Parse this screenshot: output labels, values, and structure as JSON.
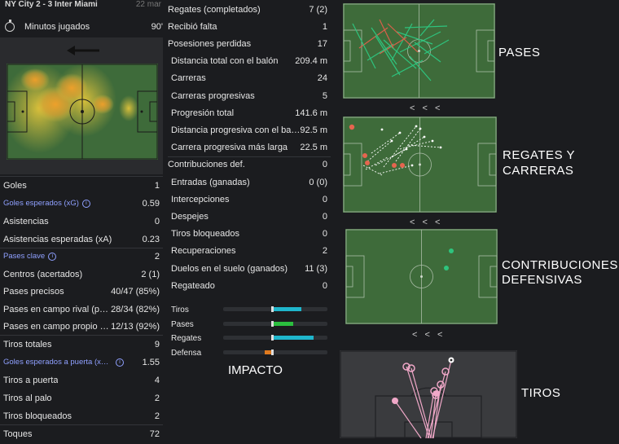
{
  "header": {
    "match": "NY City 2 - 3 Inter Miami",
    "date": "22 mar"
  },
  "minutes": {
    "label": "Minutos jugados",
    "value": "90'"
  },
  "left_stats": [
    {
      "label": "Goles",
      "value": "1",
      "style": "normal"
    },
    {
      "label": "Goles esperados (xG)",
      "value": "0.59",
      "style": "blue"
    },
    {
      "label": "Asistencias",
      "value": "0",
      "style": "normal"
    },
    {
      "label": "Asistencias esperadas (xA)",
      "value": "0.23",
      "style": "normal"
    },
    {
      "label": "Pases clave",
      "value": "2",
      "style": "blue"
    },
    {
      "label": "Centros (acertados)",
      "value": "2 (1)",
      "style": "normal"
    },
    {
      "label": "Pases precisos",
      "value": "40/47 (85%)",
      "style": "normal"
    },
    {
      "label": "Pases en campo rival (precisión)",
      "value": "28/34 (82%)",
      "style": "normal"
    },
    {
      "label": "Pases en campo propio (precisión)",
      "value": "12/13 (92%)",
      "style": "normal"
    },
    {
      "label": "Tiros totales",
      "value": "9",
      "style": "normal"
    },
    {
      "label": "Goles esperados a puerta (xGOT)",
      "value": "1.55",
      "style": "blue"
    },
    {
      "label": "Tiros a puerta",
      "value": "4",
      "style": "normal"
    },
    {
      "label": "Tiros al palo",
      "value": "2",
      "style": "normal"
    },
    {
      "label": "Tiros bloqueados",
      "value": "2",
      "style": "normal"
    },
    {
      "label": "Toques",
      "value": "72",
      "style": "normal"
    }
  ],
  "mid_stats": [
    {
      "label": "Regates (completados)",
      "value": "7 (2)"
    },
    {
      "label": "Recibió falta",
      "value": "1"
    },
    {
      "label": "Posesiones perdidas",
      "value": "17"
    },
    {
      "label": "Distancia total con el balón",
      "value": "209.4 m"
    },
    {
      "label": "Carreras",
      "value": "24"
    },
    {
      "label": "Carreras progresivas",
      "value": "5"
    },
    {
      "label": "Progresión total",
      "value": "141.6 m"
    },
    {
      "label": "Distancia progresiva con el balón",
      "value": "92.5 m"
    },
    {
      "label": "Carrera progresiva más larga",
      "value": "22.5 m"
    },
    {
      "label": "Contribuciones def.",
      "value": "0"
    },
    {
      "label": "Entradas (ganadas)",
      "value": "0 (0)"
    },
    {
      "label": "Intercepciones",
      "value": "0"
    },
    {
      "label": "Despejes",
      "value": "0"
    },
    {
      "label": "Tiros bloqueados",
      "value": "0"
    },
    {
      "label": "Recuperaciones",
      "value": "2"
    },
    {
      "label": "Duelos en el suelo (ganados)",
      "value": "11 (3)"
    },
    {
      "label": "Regateado",
      "value": "0"
    }
  ],
  "impact": {
    "title": "IMPACTO",
    "bars": [
      {
        "label": "Tiros",
        "fill_from": 0.47,
        "fill_to": 0.75,
        "color": "#1fb6cc"
      },
      {
        "label": "Pases",
        "fill_from": 0.47,
        "fill_to": 0.67,
        "color": "#2bbf3f"
      },
      {
        "label": "Regates",
        "fill_from": 0.47,
        "fill_to": 0.87,
        "color": "#1fb6cc"
      },
      {
        "label": "Defensa",
        "fill_from": 0.4,
        "fill_to": 0.47,
        "color": "#e07a1f"
      }
    ]
  },
  "sections": {
    "passes": "PASES",
    "dribbles_l1": "REGATES Y",
    "dribbles_l2": "CARRERAS",
    "defense_l1": "CONTRIBUCIONES",
    "defense_l2": "DEFENSIVAS",
    "shots": "TIROS",
    "chevrons": "< < <"
  },
  "info_glyph": "i",
  "colors": {
    "pitch": "#3e6b3a",
    "background": "#1b1c1f",
    "accent_blue": "#8fa0ff"
  }
}
